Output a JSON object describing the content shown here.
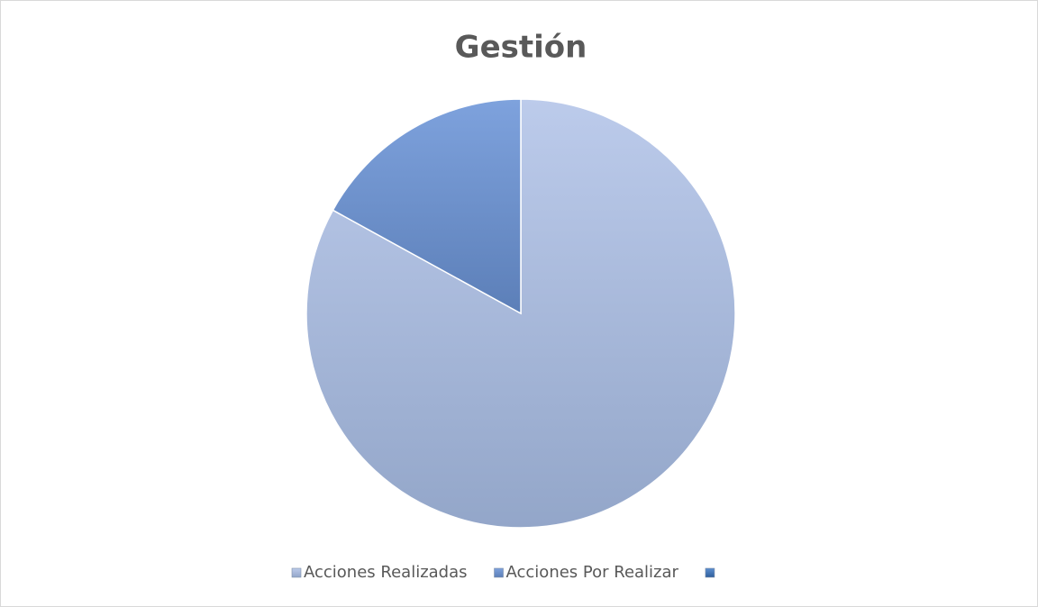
{
  "chart_data": {
    "type": "pie",
    "title": "Gestión",
    "categories": [
      "Acciones Realizadas",
      "Acciones Por Realizar",
      null
    ],
    "values": [
      83,
      17,
      0
    ],
    "colors": [
      "#a9bde2",
      "#6e92cf",
      "#4f81bd"
    ],
    "legend": "bottom"
  }
}
